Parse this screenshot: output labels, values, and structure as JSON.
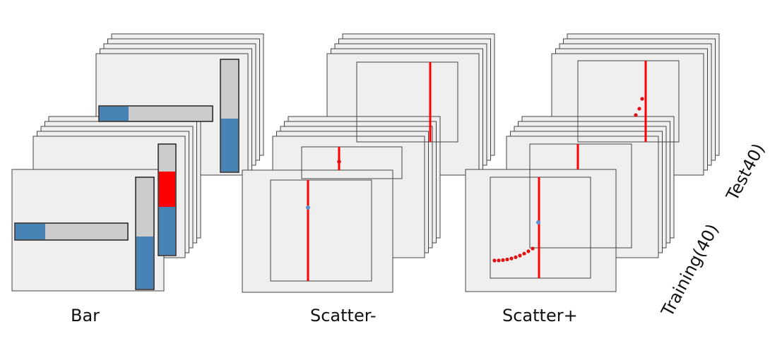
{
  "groups": [
    {
      "id": "bar",
      "label": "Bar"
    },
    {
      "id": "scatter-minus",
      "label": "Scatter-"
    },
    {
      "id": "scatter-plus",
      "label": "Scatter+"
    }
  ],
  "sets": {
    "training": "Training(40)",
    "test": "Test40)"
  },
  "colors": {
    "card_fill": "#efefef",
    "card_stroke": "#444444",
    "bar_track": "#cccccc",
    "bar_fill_blue": "#4682b4",
    "highlight_red": "#ff0000",
    "point_red": "#dd1111",
    "point_blue": "#5b8fd6"
  },
  "stimuli": {
    "bar_training": {
      "horizontal_fraction": 0.26,
      "vertical_fraction": 0.47
    },
    "bar_test": {
      "horizontal_fraction": 0.26,
      "vertical_fraction": 0.48
    },
    "bar_training_back": {
      "vertical_fraction": 0.35,
      "red_fraction": 0.24
    }
  }
}
